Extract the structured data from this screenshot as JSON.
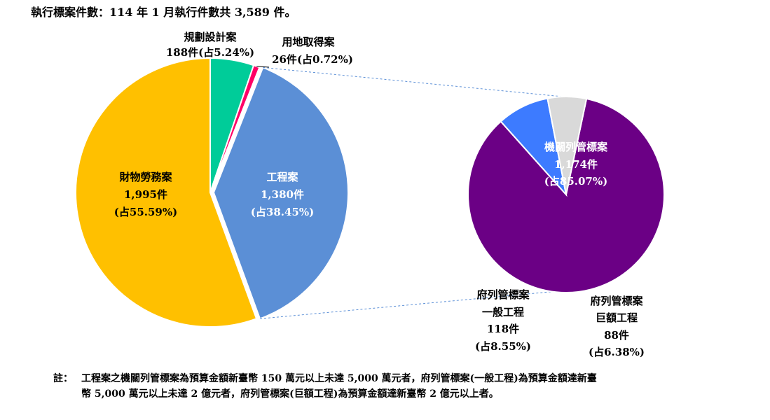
{
  "header": {
    "title": "執行標案件數：114 年 1 月執行件數共 3,589 件。"
  },
  "footnote": {
    "prefix": "註：",
    "line1": "工程案之機關列管標案為預算金額新臺幣 150 萬元以上未達 5,000 萬元者，府列管標案(一般工程)為預算金額達新臺",
    "line2": "幣 5,000 萬元以上未達 2 億元者，府列管標案(巨額工程)為預算金額達新臺幣 2 億元以上者。"
  },
  "chart_data": [
    {
      "type": "pie",
      "slices": [
        {
          "name": "規劃設計案",
          "value": 188,
          "count_label": "188件",
          "percent_label": "(占5.24%)",
          "color": "#00CC99"
        },
        {
          "name": "用地取得案",
          "value": 26,
          "count_label": "26件",
          "percent_label": "(占0.72%)",
          "color": "#FF0066"
        },
        {
          "name": "工程案",
          "value": 1380,
          "count_label": "1,380件",
          "percent_label": "(占38.45%)",
          "color": "#5B8FD6"
        },
        {
          "name": "財物勞務案",
          "value": 1995,
          "count_label": "1,995件",
          "percent_label": "(占55.59%)",
          "color": "#FFC000"
        }
      ]
    },
    {
      "type": "pie",
      "slices": [
        {
          "name": "機關列管標案",
          "value": 1174,
          "count_label": "1,174件",
          "percent_label": "(占85.07%)",
          "color": "#6B0085"
        },
        {
          "name_lines": [
            "府列管標案",
            "一般工程"
          ],
          "value": 118,
          "count_label": "118件",
          "percent_label": "(占8.55%)",
          "color": "#3D7BFF"
        },
        {
          "name_lines": [
            "府列管標案",
            "巨額工程"
          ],
          "value": 88,
          "count_label": "88件",
          "percent_label": "(占6.38%)",
          "color": "#D9D9D9"
        }
      ]
    }
  ]
}
